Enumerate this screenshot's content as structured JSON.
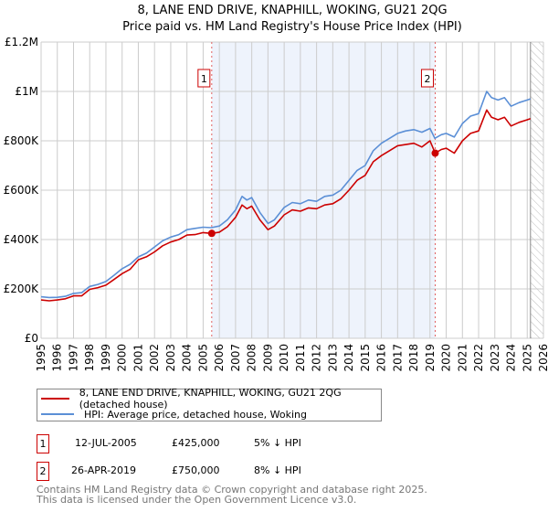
{
  "chart_data": {
    "type": "line",
    "title": "8, LANE END DRIVE, KNAPHILL, WOKING, GU21 2QG",
    "subtitle": "Price paid vs. HM Land Registry's House Price Index (HPI)",
    "xlim": [
      1995,
      2026
    ],
    "ylim": [
      0,
      1200000
    ],
    "x_ticks": [
      "1995",
      "1996",
      "1997",
      "1998",
      "1999",
      "2000",
      "2001",
      "2002",
      "2003",
      "2004",
      "2005",
      "2006",
      "2007",
      "2008",
      "2009",
      "2010",
      "2011",
      "2012",
      "2013",
      "2014",
      "2015",
      "2016",
      "2017",
      "2018",
      "2019",
      "2020",
      "2021",
      "2022",
      "2023",
      "2024",
      "2025",
      "2026"
    ],
    "y_ticks": [
      {
        "v": 0,
        "label": "£0"
      },
      {
        "v": 200000,
        "label": "£200K"
      },
      {
        "v": 400000,
        "label": "£400K"
      },
      {
        "v": 600000,
        "label": "£600K"
      },
      {
        "v": 800000,
        "label": "£800K"
      },
      {
        "v": 1000000,
        "label": "£1M"
      },
      {
        "v": 1200000,
        "label": "£1.2M"
      }
    ],
    "grid": true,
    "units": "£K",
    "series": [
      {
        "name": "8, LANE END DRIVE, KNAPHILL, WOKING, GU21 2QG (detached house)",
        "color": "#cc0000",
        "points": [
          [
            1995,
            155
          ],
          [
            1995.5,
            152
          ],
          [
            1996,
            155
          ],
          [
            1996.5,
            160
          ],
          [
            1997,
            172
          ],
          [
            1997.5,
            172
          ],
          [
            1998,
            198
          ],
          [
            1998.5,
            205
          ],
          [
            1999,
            215
          ],
          [
            1999.5,
            238
          ],
          [
            2000,
            262
          ],
          [
            2000.5,
            280
          ],
          [
            2001,
            318
          ],
          [
            2001.5,
            330
          ],
          [
            2002,
            350
          ],
          [
            2002.5,
            375
          ],
          [
            2003,
            390
          ],
          [
            2003.5,
            400
          ],
          [
            2004,
            418
          ],
          [
            2004.5,
            420
          ],
          [
            2005,
            428
          ],
          [
            2005.53,
            425
          ],
          [
            2006,
            430
          ],
          [
            2006.5,
            452
          ],
          [
            2007,
            490
          ],
          [
            2007.4,
            540
          ],
          [
            2007.7,
            525
          ],
          [
            2008,
            535
          ],
          [
            2008.5,
            480
          ],
          [
            2009,
            440
          ],
          [
            2009.4,
            455
          ],
          [
            2010,
            500
          ],
          [
            2010.5,
            520
          ],
          [
            2011,
            515
          ],
          [
            2011.5,
            528
          ],
          [
            2012,
            525
          ],
          [
            2012.5,
            540
          ],
          [
            2013,
            545
          ],
          [
            2013.5,
            565
          ],
          [
            2014,
            600
          ],
          [
            2014.5,
            640
          ],
          [
            2015,
            660
          ],
          [
            2015.5,
            715
          ],
          [
            2016,
            740
          ],
          [
            2016.5,
            760
          ],
          [
            2017,
            780
          ],
          [
            2017.5,
            785
          ],
          [
            2018,
            790
          ],
          [
            2018.5,
            775
          ],
          [
            2019,
            800
          ],
          [
            2019.32,
            750
          ],
          [
            2019.7,
            765
          ],
          [
            2020,
            770
          ],
          [
            2020.5,
            750
          ],
          [
            2021,
            800
          ],
          [
            2021.5,
            830
          ],
          [
            2022,
            840
          ],
          [
            2022.5,
            925
          ],
          [
            2022.8,
            895
          ],
          [
            2023.2,
            885
          ],
          [
            2023.6,
            895
          ],
          [
            2024,
            860
          ],
          [
            2024.5,
            875
          ],
          [
            2025,
            885
          ],
          [
            2025.2,
            890
          ]
        ]
      },
      {
        "name": "HPI: Average price, detached house, Woking",
        "color": "#5b8fd6",
        "points": [
          [
            1995,
            168
          ],
          [
            1995.5,
            165
          ],
          [
            1996,
            166
          ],
          [
            1996.5,
            170
          ],
          [
            1997,
            182
          ],
          [
            1997.5,
            185
          ],
          [
            1998,
            210
          ],
          [
            1998.5,
            218
          ],
          [
            1999,
            230
          ],
          [
            1999.5,
            255
          ],
          [
            2000,
            282
          ],
          [
            2000.5,
            300
          ],
          [
            2001,
            330
          ],
          [
            2001.5,
            345
          ],
          [
            2002,
            370
          ],
          [
            2002.5,
            395
          ],
          [
            2003,
            410
          ],
          [
            2003.5,
            420
          ],
          [
            2004,
            440
          ],
          [
            2004.5,
            445
          ],
          [
            2005,
            450
          ],
          [
            2005.5,
            448
          ],
          [
            2006,
            455
          ],
          [
            2006.5,
            480
          ],
          [
            2007,
            520
          ],
          [
            2007.4,
            575
          ],
          [
            2007.7,
            560
          ],
          [
            2008,
            570
          ],
          [
            2008.5,
            510
          ],
          [
            2009,
            465
          ],
          [
            2009.4,
            480
          ],
          [
            2010,
            530
          ],
          [
            2010.5,
            550
          ],
          [
            2011,
            545
          ],
          [
            2011.5,
            560
          ],
          [
            2012,
            555
          ],
          [
            2012.5,
            575
          ],
          [
            2013,
            580
          ],
          [
            2013.5,
            600
          ],
          [
            2014,
            640
          ],
          [
            2014.5,
            680
          ],
          [
            2015,
            700
          ],
          [
            2015.5,
            760
          ],
          [
            2016,
            790
          ],
          [
            2016.5,
            810
          ],
          [
            2017,
            830
          ],
          [
            2017.5,
            840
          ],
          [
            2018,
            845
          ],
          [
            2018.5,
            835
          ],
          [
            2019,
            850
          ],
          [
            2019.3,
            810
          ],
          [
            2019.7,
            825
          ],
          [
            2020,
            830
          ],
          [
            2020.5,
            815
          ],
          [
            2021,
            870
          ],
          [
            2021.5,
            900
          ],
          [
            2022,
            910
          ],
          [
            2022.5,
            1000
          ],
          [
            2022.8,
            975
          ],
          [
            2023.2,
            965
          ],
          [
            2023.6,
            975
          ],
          [
            2024,
            940
          ],
          [
            2024.5,
            955
          ],
          [
            2025,
            965
          ],
          [
            2025.2,
            970
          ]
        ]
      }
    ],
    "sales": [
      {
        "label": "1",
        "x": 2005.53,
        "value": 425
      },
      {
        "label": "2",
        "x": 2019.32,
        "value": 750
      }
    ],
    "forecast_start": 2025.2
  },
  "legend": {
    "property": "8, LANE END DRIVE, KNAPHILL, WOKING, GU21 2QG (detached house)",
    "hpi": "HPI: Average price, detached house, Woking"
  },
  "transactions": [
    {
      "num": "1",
      "date": "12-JUL-2005",
      "price": "£425,000",
      "hpi": "5% ↓ HPI"
    },
    {
      "num": "2",
      "date": "26-APR-2019",
      "price": "£750,000",
      "hpi": "8% ↓ HPI"
    }
  ],
  "footer": {
    "line1": "Contains HM Land Registry data © Crown copyright and database right 2025.",
    "line2": "This data is licensed under the Open Government Licence v3.0."
  }
}
